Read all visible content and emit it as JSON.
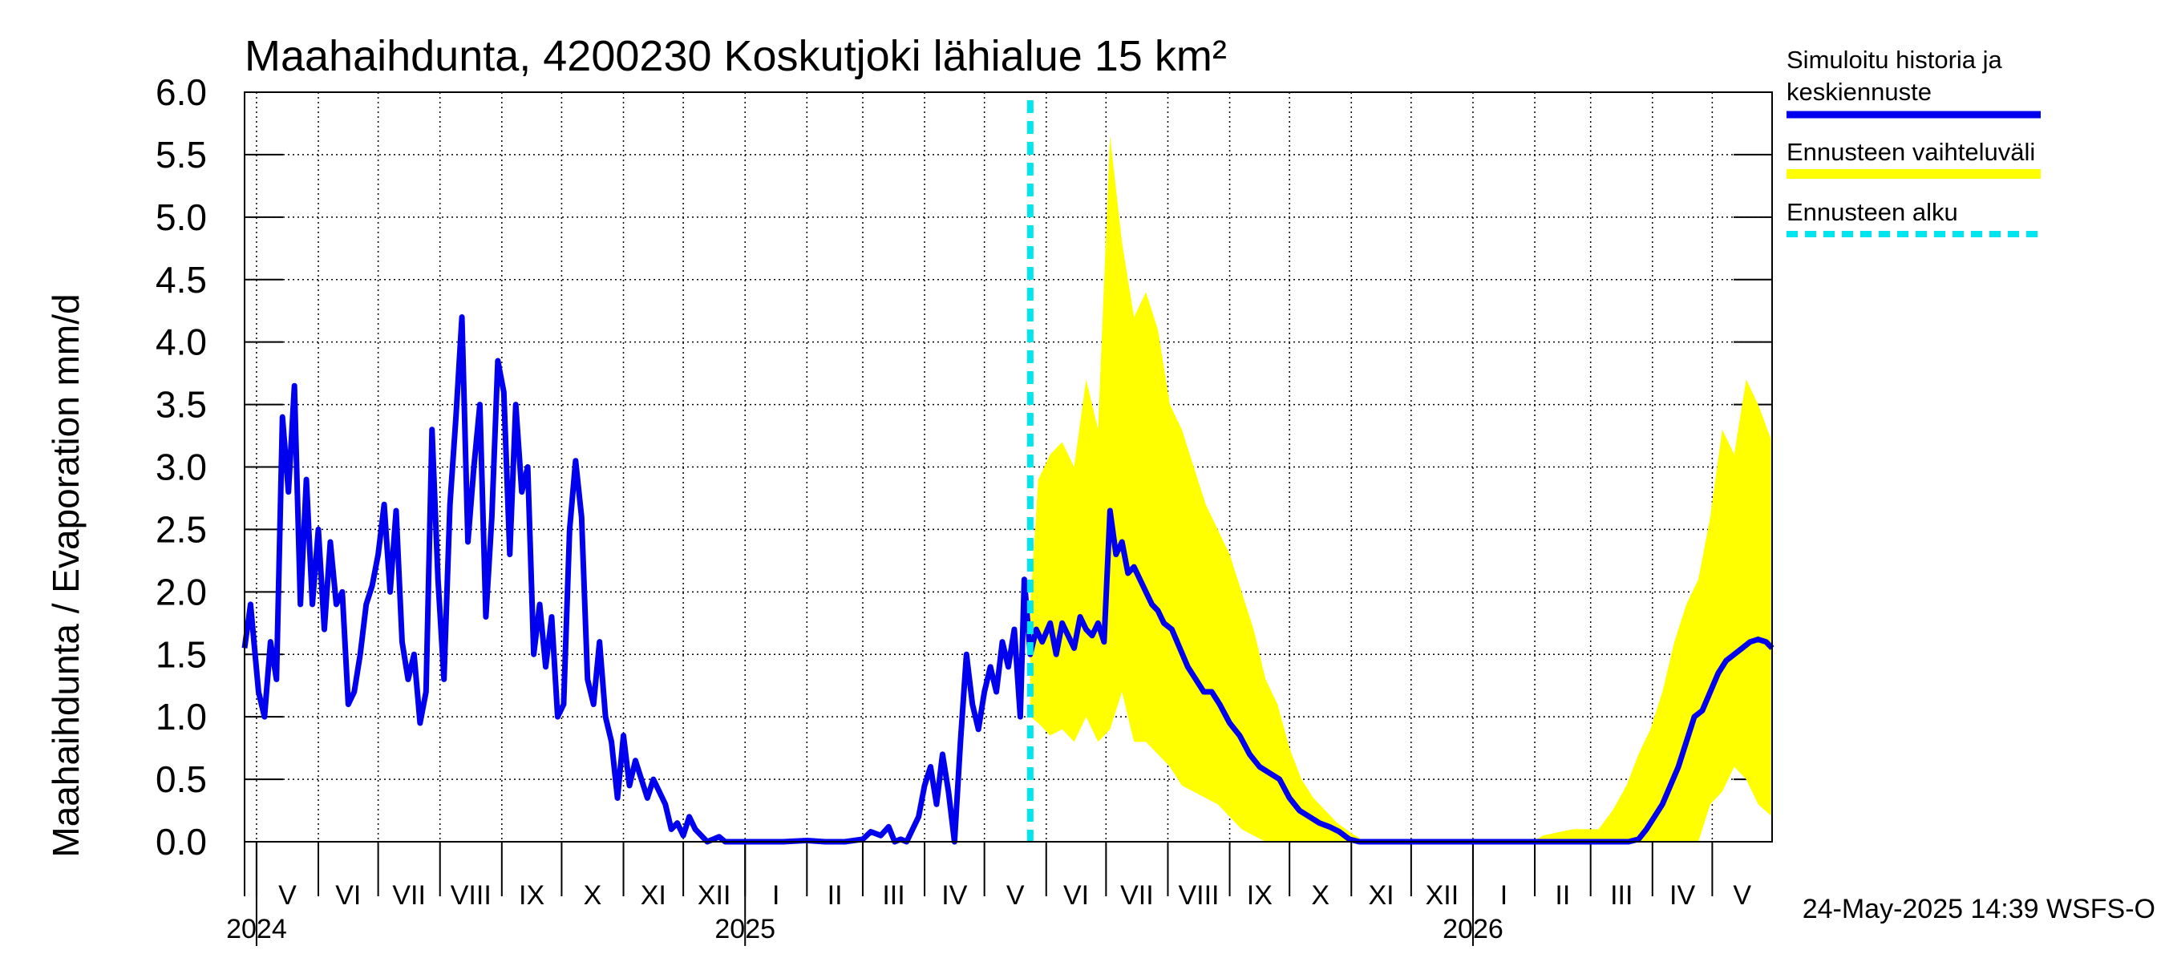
{
  "chart_data": {
    "type": "line",
    "title": "Maahaihdunta, 4200230 Koskutjoki lähialue 15 km²",
    "ylabel": "Maahaihdunta / Evaporation   mm/d",
    "ylim": [
      0,
      6
    ],
    "yticks": [
      "0.0",
      "0.5",
      "1.0",
      "1.5",
      "2.0",
      "2.5",
      "3.0",
      "3.5",
      "4.0",
      "4.5",
      "5.0",
      "5.5",
      "6.0"
    ],
    "x_range": [
      "2024-04-25",
      "2026-05-31"
    ],
    "months": [
      {
        "label": "V",
        "start": "2024-05-01"
      },
      {
        "label": "VI",
        "start": "2024-06-01"
      },
      {
        "label": "VII",
        "start": "2024-07-01"
      },
      {
        "label": "VIII",
        "start": "2024-08-01"
      },
      {
        "label": "IX",
        "start": "2024-09-01"
      },
      {
        "label": "X",
        "start": "2024-10-01"
      },
      {
        "label": "XI",
        "start": "2024-11-01"
      },
      {
        "label": "XII",
        "start": "2024-12-01"
      },
      {
        "label": "I",
        "start": "2025-01-01"
      },
      {
        "label": "II",
        "start": "2025-02-01"
      },
      {
        "label": "III",
        "start": "2025-03-01"
      },
      {
        "label": "IV",
        "start": "2025-04-01"
      },
      {
        "label": "V",
        "start": "2025-05-01"
      },
      {
        "label": "VI",
        "start": "2025-06-01"
      },
      {
        "label": "VII",
        "start": "2025-07-01"
      },
      {
        "label": "VIII",
        "start": "2025-08-01"
      },
      {
        "label": "IX",
        "start": "2025-09-01"
      },
      {
        "label": "X",
        "start": "2025-10-01"
      },
      {
        "label": "XI",
        "start": "2025-11-01"
      },
      {
        "label": "XII",
        "start": "2025-12-01"
      },
      {
        "label": "I",
        "start": "2026-01-01"
      },
      {
        "label": "II",
        "start": "2026-02-01"
      },
      {
        "label": "III",
        "start": "2026-03-01"
      },
      {
        "label": "IV",
        "start": "2026-04-01"
      },
      {
        "label": "V",
        "start": "2026-05-01"
      }
    ],
    "years": [
      {
        "label": "2024",
        "date": "2024-05-01"
      },
      {
        "label": "2025",
        "date": "2025-01-01"
      },
      {
        "label": "2026",
        "date": "2026-01-01"
      }
    ],
    "forecast_start": "2025-05-24",
    "series": [
      {
        "name": "Simuloitu historia ja keskiennuste",
        "color": "#0000ee",
        "points": [
          [
            "2024-04-25",
            1.55
          ],
          [
            "2024-04-28",
            1.9
          ],
          [
            "2024-05-02",
            1.2
          ],
          [
            "2024-05-05",
            1.0
          ],
          [
            "2024-05-08",
            1.6
          ],
          [
            "2024-05-11",
            1.3
          ],
          [
            "2024-05-14",
            3.4
          ],
          [
            "2024-05-17",
            2.8
          ],
          [
            "2024-05-20",
            3.65
          ],
          [
            "2024-05-23",
            1.9
          ],
          [
            "2024-05-26",
            2.9
          ],
          [
            "2024-05-29",
            1.9
          ],
          [
            "2024-06-01",
            2.5
          ],
          [
            "2024-06-04",
            1.7
          ],
          [
            "2024-06-07",
            2.4
          ],
          [
            "2024-06-10",
            1.9
          ],
          [
            "2024-06-13",
            2.0
          ],
          [
            "2024-06-16",
            1.1
          ],
          [
            "2024-06-19",
            1.2
          ],
          [
            "2024-06-22",
            1.5
          ],
          [
            "2024-06-25",
            1.9
          ],
          [
            "2024-06-28",
            2.05
          ],
          [
            "2024-07-01",
            2.3
          ],
          [
            "2024-07-04",
            2.7
          ],
          [
            "2024-07-07",
            2.0
          ],
          [
            "2024-07-10",
            2.65
          ],
          [
            "2024-07-13",
            1.6
          ],
          [
            "2024-07-16",
            1.3
          ],
          [
            "2024-07-19",
            1.5
          ],
          [
            "2024-07-22",
            0.95
          ],
          [
            "2024-07-25",
            1.2
          ],
          [
            "2024-07-28",
            3.3
          ],
          [
            "2024-07-31",
            2.1
          ],
          [
            "2024-08-03",
            1.3
          ],
          [
            "2024-08-06",
            2.7
          ],
          [
            "2024-08-09",
            3.4
          ],
          [
            "2024-08-12",
            4.2
          ],
          [
            "2024-08-15",
            2.4
          ],
          [
            "2024-08-18",
            3.0
          ],
          [
            "2024-08-21",
            3.5
          ],
          [
            "2024-08-24",
            1.8
          ],
          [
            "2024-08-27",
            2.6
          ],
          [
            "2024-08-30",
            3.85
          ],
          [
            "2024-09-02",
            3.6
          ],
          [
            "2024-09-05",
            2.3
          ],
          [
            "2024-09-08",
            3.5
          ],
          [
            "2024-09-11",
            2.8
          ],
          [
            "2024-09-14",
            3.0
          ],
          [
            "2024-09-17",
            1.5
          ],
          [
            "2024-09-20",
            1.9
          ],
          [
            "2024-09-23",
            1.4
          ],
          [
            "2024-09-26",
            1.8
          ],
          [
            "2024-09-29",
            1.0
          ],
          [
            "2024-10-02",
            1.1
          ],
          [
            "2024-10-05",
            2.5
          ],
          [
            "2024-10-08",
            3.05
          ],
          [
            "2024-10-11",
            2.6
          ],
          [
            "2024-10-14",
            1.3
          ],
          [
            "2024-10-17",
            1.1
          ],
          [
            "2024-10-20",
            1.6
          ],
          [
            "2024-10-23",
            1.0
          ],
          [
            "2024-10-26",
            0.8
          ],
          [
            "2024-10-29",
            0.35
          ],
          [
            "2024-11-01",
            0.85
          ],
          [
            "2024-11-04",
            0.45
          ],
          [
            "2024-11-07",
            0.65
          ],
          [
            "2024-11-10",
            0.5
          ],
          [
            "2024-11-13",
            0.35
          ],
          [
            "2024-11-16",
            0.5
          ],
          [
            "2024-11-19",
            0.4
          ],
          [
            "2024-11-22",
            0.3
          ],
          [
            "2024-11-25",
            0.1
          ],
          [
            "2024-11-28",
            0.15
          ],
          [
            "2024-12-01",
            0.05
          ],
          [
            "2024-12-04",
            0.2
          ],
          [
            "2024-12-07",
            0.1
          ],
          [
            "2024-12-10",
            0.05
          ],
          [
            "2024-12-13",
            0.0
          ],
          [
            "2024-12-16",
            0.02
          ],
          [
            "2024-12-19",
            0.04
          ],
          [
            "2024-12-22",
            0.0
          ],
          [
            "2025-01-05",
            0.0
          ],
          [
            "2025-01-20",
            0.0
          ],
          [
            "2025-02-01",
            0.01
          ],
          [
            "2025-02-10",
            0.0
          ],
          [
            "2025-02-20",
            0.0
          ],
          [
            "2025-03-01",
            0.02
          ],
          [
            "2025-03-05",
            0.08
          ],
          [
            "2025-03-10",
            0.05
          ],
          [
            "2025-03-14",
            0.12
          ],
          [
            "2025-03-17",
            0.0
          ],
          [
            "2025-03-20",
            0.02
          ],
          [
            "2025-03-23",
            0.0
          ],
          [
            "2025-03-26",
            0.1
          ],
          [
            "2025-03-29",
            0.2
          ],
          [
            "2025-04-01",
            0.45
          ],
          [
            "2025-04-04",
            0.6
          ],
          [
            "2025-04-07",
            0.3
          ],
          [
            "2025-04-10",
            0.7
          ],
          [
            "2025-04-13",
            0.4
          ],
          [
            "2025-04-16",
            0.0
          ],
          [
            "2025-04-19",
            0.8
          ],
          [
            "2025-04-22",
            1.5
          ],
          [
            "2025-04-25",
            1.1
          ],
          [
            "2025-04-28",
            0.9
          ],
          [
            "2025-05-01",
            1.2
          ],
          [
            "2025-05-04",
            1.4
          ],
          [
            "2025-05-07",
            1.2
          ],
          [
            "2025-05-10",
            1.6
          ],
          [
            "2025-05-13",
            1.4
          ],
          [
            "2025-05-16",
            1.7
          ],
          [
            "2025-05-19",
            1.0
          ],
          [
            "2025-05-21",
            2.1
          ],
          [
            "2025-05-24",
            1.5
          ],
          [
            "2025-05-27",
            1.7
          ],
          [
            "2025-05-30",
            1.6
          ],
          [
            "2025-06-03",
            1.75
          ],
          [
            "2025-06-06",
            1.5
          ],
          [
            "2025-06-09",
            1.75
          ],
          [
            "2025-06-12",
            1.65
          ],
          [
            "2025-06-15",
            1.55
          ],
          [
            "2025-06-18",
            1.8
          ],
          [
            "2025-06-21",
            1.7
          ],
          [
            "2025-06-24",
            1.65
          ],
          [
            "2025-06-27",
            1.75
          ],
          [
            "2025-06-30",
            1.6
          ],
          [
            "2025-07-03",
            2.65
          ],
          [
            "2025-07-06",
            2.3
          ],
          [
            "2025-07-09",
            2.4
          ],
          [
            "2025-07-12",
            2.15
          ],
          [
            "2025-07-15",
            2.2
          ],
          [
            "2025-07-18",
            2.1
          ],
          [
            "2025-07-21",
            2.0
          ],
          [
            "2025-07-24",
            1.9
          ],
          [
            "2025-07-27",
            1.85
          ],
          [
            "2025-07-30",
            1.75
          ],
          [
            "2025-08-03",
            1.7
          ],
          [
            "2025-08-07",
            1.55
          ],
          [
            "2025-08-11",
            1.4
          ],
          [
            "2025-08-15",
            1.3
          ],
          [
            "2025-08-19",
            1.2
          ],
          [
            "2025-08-23",
            1.2
          ],
          [
            "2025-08-27",
            1.1
          ],
          [
            "2025-09-01",
            0.95
          ],
          [
            "2025-09-06",
            0.85
          ],
          [
            "2025-09-11",
            0.7
          ],
          [
            "2025-09-16",
            0.6
          ],
          [
            "2025-09-21",
            0.55
          ],
          [
            "2025-09-26",
            0.5
          ],
          [
            "2025-10-01",
            0.35
          ],
          [
            "2025-10-06",
            0.25
          ],
          [
            "2025-10-11",
            0.2
          ],
          [
            "2025-10-16",
            0.15
          ],
          [
            "2025-10-21",
            0.12
          ],
          [
            "2025-10-26",
            0.08
          ],
          [
            "2025-10-31",
            0.02
          ],
          [
            "2025-11-05",
            0.0
          ],
          [
            "2025-12-15",
            0.0
          ],
          [
            "2026-01-31",
            0.0
          ],
          [
            "2026-03-20",
            0.0
          ],
          [
            "2026-03-25",
            0.02
          ],
          [
            "2026-03-29",
            0.1
          ],
          [
            "2026-04-02",
            0.2
          ],
          [
            "2026-04-06",
            0.3
          ],
          [
            "2026-04-10",
            0.45
          ],
          [
            "2026-04-14",
            0.6
          ],
          [
            "2026-04-18",
            0.8
          ],
          [
            "2026-04-22",
            1.0
          ],
          [
            "2026-04-26",
            1.05
          ],
          [
            "2026-04-30",
            1.2
          ],
          [
            "2026-05-04",
            1.35
          ],
          [
            "2026-05-08",
            1.45
          ],
          [
            "2026-05-12",
            1.5
          ],
          [
            "2026-05-16",
            1.55
          ],
          [
            "2026-05-20",
            1.6
          ],
          [
            "2026-05-24",
            1.62
          ],
          [
            "2026-05-28",
            1.6
          ],
          [
            "2026-05-31",
            1.55
          ]
        ]
      },
      {
        "name": "Ennusteen vaihteluväli",
        "color": "#ffff00",
        "band": [
          [
            "2025-05-24",
            1.0,
            1.9
          ],
          [
            "2025-05-28",
            0.95,
            2.9
          ],
          [
            "2025-06-03",
            0.85,
            3.1
          ],
          [
            "2025-06-09",
            0.9,
            3.2
          ],
          [
            "2025-06-15",
            0.8,
            3.0
          ],
          [
            "2025-06-21",
            1.0,
            3.7
          ],
          [
            "2025-06-27",
            0.8,
            3.3
          ],
          [
            "2025-07-03",
            0.9,
            5.65
          ],
          [
            "2025-07-09",
            1.2,
            4.8
          ],
          [
            "2025-07-15",
            0.8,
            4.2
          ],
          [
            "2025-07-21",
            0.8,
            4.4
          ],
          [
            "2025-07-27",
            0.7,
            4.1
          ],
          [
            "2025-08-02",
            0.6,
            3.5
          ],
          [
            "2025-08-08",
            0.45,
            3.3
          ],
          [
            "2025-08-14",
            0.4,
            3.0
          ],
          [
            "2025-08-20",
            0.35,
            2.7
          ],
          [
            "2025-08-26",
            0.3,
            2.5
          ],
          [
            "2025-09-01",
            0.2,
            2.3
          ],
          [
            "2025-09-07",
            0.1,
            2.0
          ],
          [
            "2025-09-13",
            0.05,
            1.7
          ],
          [
            "2025-09-19",
            0.0,
            1.3
          ],
          [
            "2025-09-25",
            0.0,
            1.1
          ],
          [
            "2025-10-01",
            0.0,
            0.75
          ],
          [
            "2025-10-07",
            0.0,
            0.5
          ],
          [
            "2025-10-13",
            0.0,
            0.35
          ],
          [
            "2025-10-19",
            0.0,
            0.25
          ],
          [
            "2025-10-25",
            0.0,
            0.15
          ],
          [
            "2025-10-31",
            0.0,
            0.08
          ],
          [
            "2025-11-06",
            0.0,
            0.02
          ],
          [
            "2025-11-15",
            0.0,
            0.0
          ],
          [
            "2026-01-31",
            0.0,
            0.0
          ],
          [
            "2026-02-05",
            0.0,
            0.05
          ],
          [
            "2026-02-20",
            0.0,
            0.1
          ],
          [
            "2026-03-05",
            0.0,
            0.1
          ],
          [
            "2026-03-12",
            0.0,
            0.25
          ],
          [
            "2026-03-19",
            0.0,
            0.45
          ],
          [
            "2026-03-25",
            0.0,
            0.7
          ],
          [
            "2026-03-31",
            0.0,
            0.9
          ],
          [
            "2026-04-06",
            0.0,
            1.2
          ],
          [
            "2026-04-12",
            0.0,
            1.6
          ],
          [
            "2026-04-18",
            0.0,
            1.9
          ],
          [
            "2026-04-24",
            0.0,
            2.1
          ],
          [
            "2026-04-30",
            0.3,
            2.6
          ],
          [
            "2026-05-06",
            0.4,
            3.3
          ],
          [
            "2026-05-12",
            0.6,
            3.1
          ],
          [
            "2026-05-18",
            0.5,
            3.7
          ],
          [
            "2026-05-24",
            0.3,
            3.5
          ],
          [
            "2026-05-31",
            0.2,
            3.2
          ]
        ]
      }
    ],
    "legend": [
      {
        "label": "Simuloitu historia ja",
        "label2": "keskiennuste",
        "style": "line",
        "color": "#0000ee"
      },
      {
        "label": "Ennusteen vaihteluväli",
        "style": "band",
        "color": "#ffff00"
      },
      {
        "label": "Ennusteen alku",
        "style": "dashed",
        "color": "#00e5ee"
      }
    ],
    "legend_position": "right",
    "grid": true,
    "footer": "24-May-2025 14:39 WSFS-O"
  }
}
